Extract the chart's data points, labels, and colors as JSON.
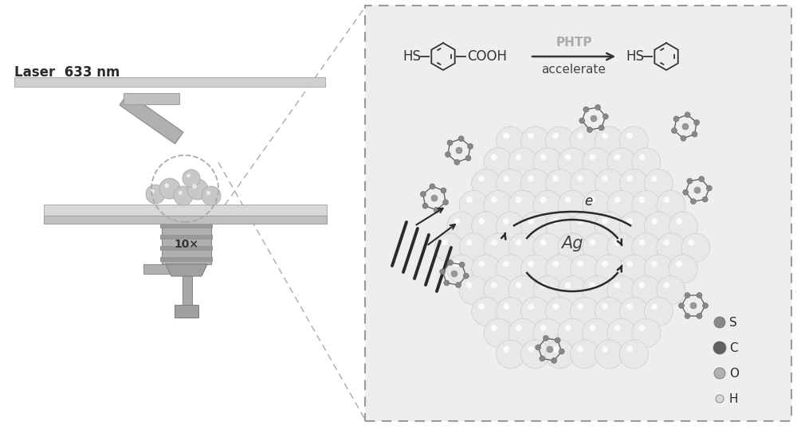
{
  "bg_color": "#ffffff",
  "left_bg": "#ffffff",
  "right_bg": "#eeeeee",
  "right_border": "#999999",
  "laser_label": "Laser  633 nm",
  "mag_label": "10×",
  "ag_label": "Ag",
  "electron_label": "e",
  "reaction_label_top": "PHTP",
  "reaction_label_bottom": "accelerate",
  "legend_labels": [
    "H",
    "O",
    "C",
    "S"
  ],
  "legend_colors": [
    "#d8d8d8",
    "#b0b0b0",
    "#606060",
    "#888888"
  ],
  "legend_sizes": [
    5,
    7,
    8,
    7
  ],
  "sphere_color": "#e8e8e8",
  "sphere_edge": "#cccccc",
  "sphere_highlight": "#ffffff",
  "text_color": "#2a2a2a",
  "phtp_color": "#aaaaaa",
  "arrow_color": "#2a2a2a",
  "wave_color": "#2a2a2a",
  "mol_color": "#666666",
  "mol_edge": "#444444"
}
